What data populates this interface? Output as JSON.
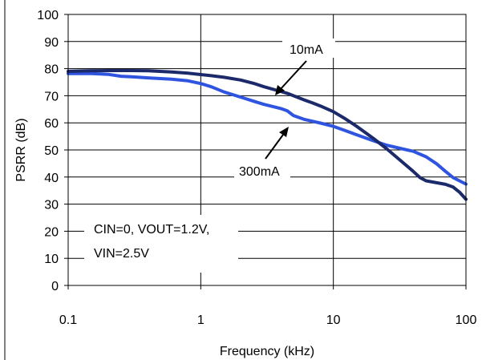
{
  "chart_data": {
    "type": "line",
    "xlabel": "Frequency (kHz)",
    "ylabel": "PSRR (dB)",
    "x_scale": "log",
    "xlim": [
      0.1,
      100
    ],
    "ylim": [
      0,
      100
    ],
    "x_ticks": [
      "0.1",
      "1",
      "10",
      "100"
    ],
    "y_ticks": [
      "0",
      "10",
      "20",
      "30",
      "40",
      "50",
      "60",
      "70",
      "80",
      "90",
      "100"
    ],
    "grid": "on",
    "series": [
      {
        "name": "10mA",
        "color": "#1c2a6b",
        "points": [
          [
            0.1,
            79
          ],
          [
            0.15,
            79.2
          ],
          [
            0.2,
            79.3
          ],
          [
            0.3,
            79.3
          ],
          [
            0.4,
            79.2
          ],
          [
            0.6,
            78.8
          ],
          [
            0.8,
            78.3
          ],
          [
            1.0,
            77.8
          ],
          [
            1.2,
            77.4
          ],
          [
            1.5,
            76.8
          ],
          [
            2.0,
            75.8
          ],
          [
            2.5,
            74.6
          ],
          [
            3.0,
            73.3
          ],
          [
            4.0,
            71.6
          ],
          [
            4.5,
            70.9
          ],
          [
            5.0,
            70.0
          ],
          [
            6.0,
            68.5
          ],
          [
            7.0,
            67.3
          ],
          [
            8.0,
            66.2
          ],
          [
            10,
            64.1
          ],
          [
            12,
            61.8
          ],
          [
            15,
            58.7
          ],
          [
            20,
            54.3
          ],
          [
            25,
            50.6
          ],
          [
            30,
            47.3
          ],
          [
            40,
            42.1
          ],
          [
            45,
            39.8
          ],
          [
            50,
            38.6
          ],
          [
            60,
            37.9
          ],
          [
            70,
            37.3
          ],
          [
            80,
            36.3
          ],
          [
            90,
            34.3
          ],
          [
            100,
            31.8
          ]
        ]
      },
      {
        "name": "300mA",
        "color": "#2f55e0",
        "points": [
          [
            0.1,
            78.2
          ],
          [
            0.15,
            78.2
          ],
          [
            0.2,
            77.9
          ],
          [
            0.25,
            77.2
          ],
          [
            0.3,
            77.0
          ],
          [
            0.4,
            76.6
          ],
          [
            0.6,
            76.1
          ],
          [
            0.8,
            75.5
          ],
          [
            1.0,
            74.5
          ],
          [
            1.2,
            73.3
          ],
          [
            1.5,
            71.4
          ],
          [
            2.0,
            69.5
          ],
          [
            2.5,
            68.0
          ],
          [
            3.0,
            66.8
          ],
          [
            4.0,
            65.3
          ],
          [
            4.5,
            64.4
          ],
          [
            5.0,
            62.7
          ],
          [
            6.0,
            61.3
          ],
          [
            8.0,
            59.9
          ],
          [
            10,
            58.7
          ],
          [
            12,
            57.3
          ],
          [
            15,
            55.6
          ],
          [
            20,
            53.4
          ],
          [
            25,
            51.8
          ],
          [
            30,
            50.9
          ],
          [
            40,
            49.5
          ],
          [
            50,
            47.5
          ],
          [
            60,
            44.9
          ],
          [
            70,
            42.1
          ],
          [
            80,
            39.8
          ],
          [
            100,
            37.4
          ]
        ]
      }
    ],
    "annotations": [
      "10mA",
      "300mA",
      "CIN=0, VOUT=1.2V,",
      "VIN=2.5V"
    ]
  }
}
